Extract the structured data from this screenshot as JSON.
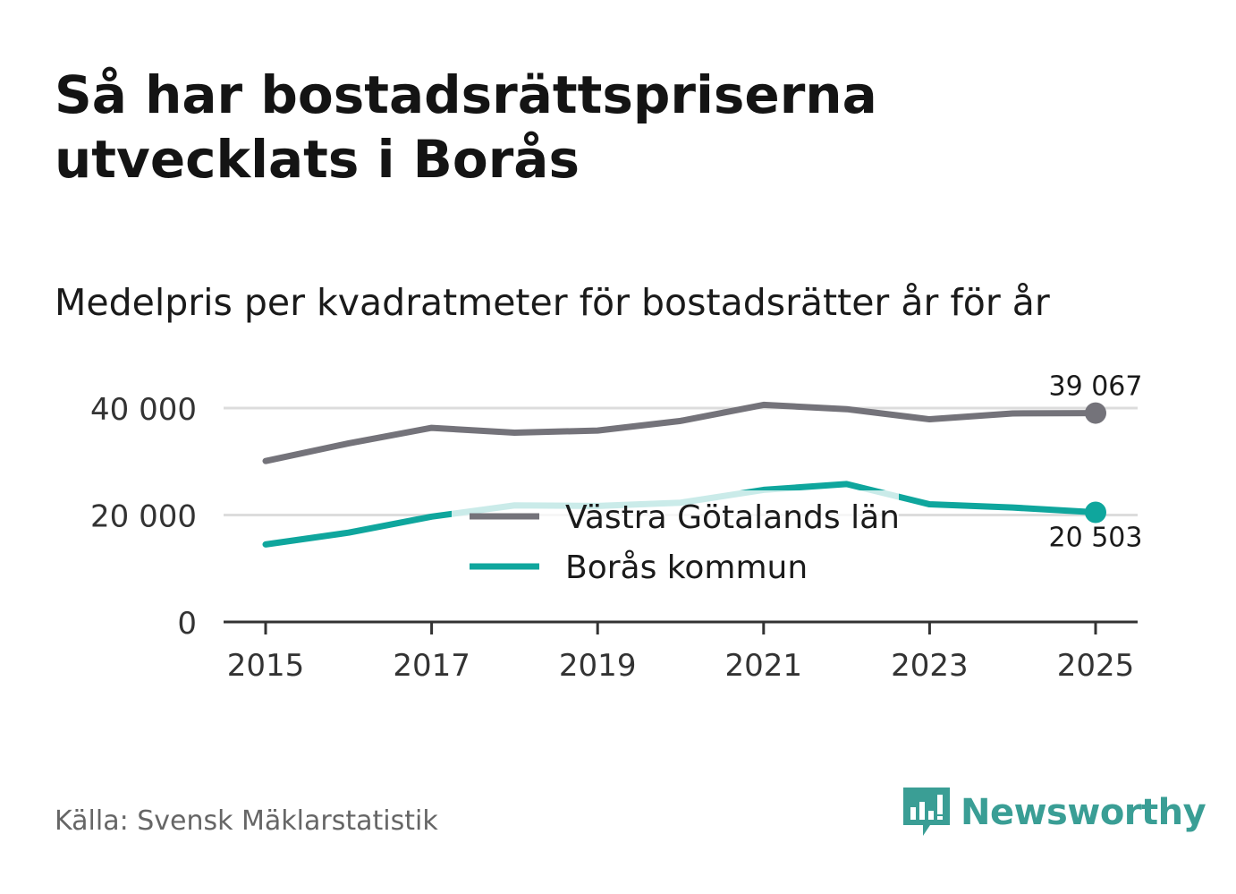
{
  "title": "Så har bostadsrättspriserna utvecklats i Borås",
  "subtitle": "Medelpris per kvadratmeter för bostadsrätter år för år",
  "source": "Källa: Svensk Mäklarstatistik",
  "brand": {
    "name": "Newsworthy",
    "color": "#3a9e95"
  },
  "chart_data": {
    "type": "line",
    "title": "Medelpris per kvadratmeter för bostadsrätter år för år",
    "x": [
      2015,
      2016,
      2017,
      2018,
      2019,
      2020,
      2021,
      2022,
      2023,
      2024,
      2025
    ],
    "x_ticks": [
      "2015",
      "2017",
      "2019",
      "2021",
      "2023",
      "2025"
    ],
    "y_ticks": [
      "0",
      "20 000",
      "40 000"
    ],
    "ylim": [
      0,
      40000
    ],
    "xlabel": "",
    "ylabel": "",
    "grid": true,
    "legend_position": "center",
    "series": [
      {
        "name": "Västra Götalands län",
        "color": "#74737a",
        "values": [
          30100,
          33400,
          36300,
          35400,
          35800,
          37600,
          40600,
          39800,
          37900,
          39000,
          39067
        ],
        "end_label": "39 067"
      },
      {
        "name": "Borås kommun",
        "color": "#0fa69d",
        "values": [
          14500,
          16700,
          19700,
          21800,
          21700,
          22300,
          24700,
          25800,
          22000,
          21400,
          20503
        ],
        "end_label": "20 503"
      }
    ]
  }
}
